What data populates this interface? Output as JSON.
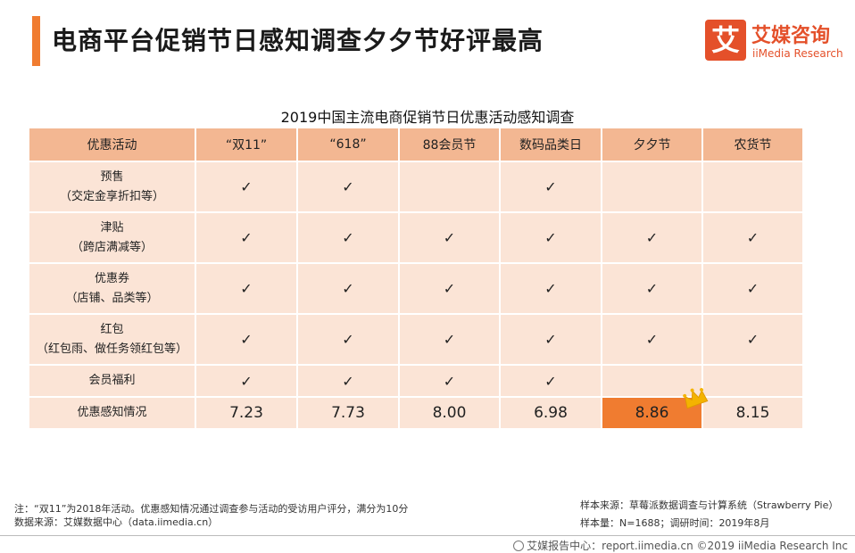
{
  "header": {
    "title": "电商平台促销节日感知调查夕夕节好评最高",
    "accent_color": "#f07c30"
  },
  "logo": {
    "mark": "艾",
    "name_cn": "艾媒咨询",
    "name_en": "iiMedia Research",
    "color": "#e4502a"
  },
  "table": {
    "title": "2019中国主流电商促销节日优惠活动感知调查",
    "columns": [
      "优惠活动",
      "“双11”",
      "“618”",
      "88会员节",
      "数码品类日",
      "夕夕节",
      "农货节"
    ],
    "check_symbol": "✓",
    "rows": [
      {
        "label1": "预售",
        "label2": "（交定金享折扣等）",
        "cells": [
          "✓",
          "✓",
          "",
          "✓",
          "",
          ""
        ]
      },
      {
        "label1": "津贴",
        "label2": "（跨店满减等）",
        "cells": [
          "✓",
          "✓",
          "✓",
          "✓",
          "✓",
          "✓"
        ]
      },
      {
        "label1": "优惠券",
        "label2": "（店铺、品类等）",
        "cells": [
          "✓",
          "✓",
          "✓",
          "✓",
          "✓",
          "✓"
        ]
      },
      {
        "label1": "红包",
        "label2": "（红包雨、做任务领红包等）",
        "cells": [
          "✓",
          "✓",
          "✓",
          "✓",
          "✓",
          "✓"
        ]
      },
      {
        "label1": "会员福利",
        "label2": "",
        "cells": [
          "✓",
          "✓",
          "✓",
          "✓",
          "",
          ""
        ]
      }
    ],
    "score_row": {
      "label": "优惠感知情况",
      "values": [
        "7.23",
        "7.73",
        "8.00",
        "6.98",
        "8.86",
        "8.15"
      ],
      "highlight_index": 4,
      "highlight_color": "#f07c30"
    },
    "header_color": "#f3b792",
    "cell_color": "#fbe4d6"
  },
  "notes": {
    "line1": "注：“双11”为2018年活动。优惠感知情况通过调查参与活动的受访用户评分，满分为10分",
    "line2": "数据来源：艾媒数据中心（data.iimedia.cn）"
  },
  "sample": {
    "source": "样本来源：草莓派数据调查与计算系统（Strawberry Pie）",
    "size": "样本量：N=1688；调研时间：2019年8月"
  },
  "footer": {
    "text": "艾媒报告中心：report.iimedia.cn  ©2019  iiMedia Research  Inc"
  }
}
